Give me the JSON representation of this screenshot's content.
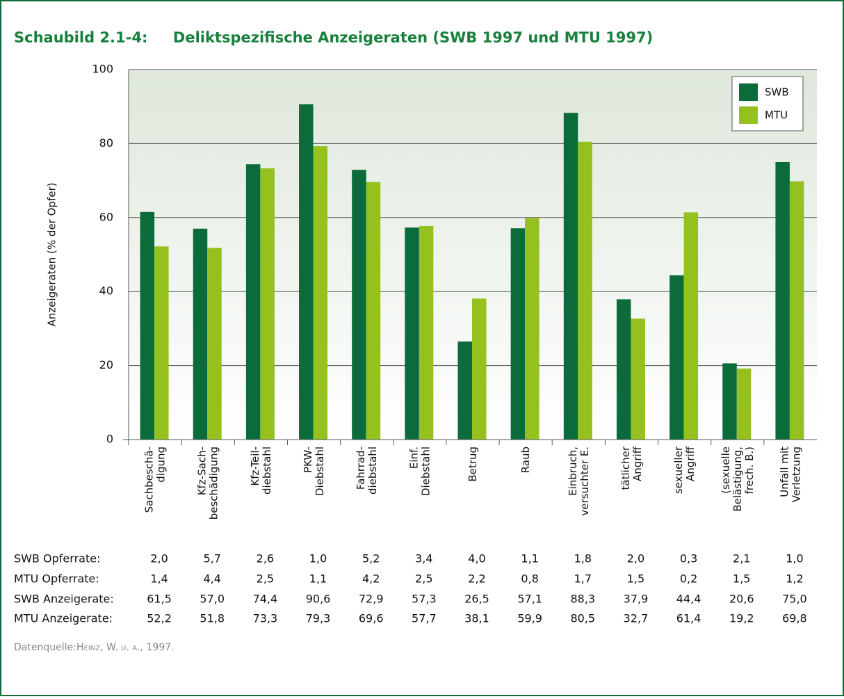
{
  "chart_data": {
    "type": "bar",
    "title": "Schaubild 2.1-4:     Deliktspezifische Anzeigeraten (SWB 1997 und MTU 1997)",
    "y_label": "Anzeigeraten (% der Opfer)",
    "categories": [
      "Sachbeschä-\ndigung",
      "Kfz-Sach-\nbeschädigung",
      "Kfz-Teil-\ndiebstahl",
      "PKW-\nDiebstahl",
      "Fahrrad-\ndiebstahl",
      "Einf.\nDiebstahl",
      "Betrug",
      "Raub",
      "Einbruch,\nversuchter E.",
      "tätlicher\nAngriff",
      "sexueller\nAngriff",
      "(sexuelle\nBelästigung,\nfrech. B.)",
      "Unfall mit\nVerletzung"
    ],
    "series": [
      {
        "name": "SWB",
        "color": "#0b6b3a",
        "table_label": "SWB Anzeigerate:",
        "values": [
          61.5,
          57.0,
          74.4,
          90.6,
          72.9,
          57.3,
          26.5,
          57.1,
          88.3,
          37.9,
          44.4,
          20.6,
          75.0
        ],
        "value_labels": [
          "61,5",
          "57,0",
          "74,4",
          "90,6",
          "72,9",
          "57,3",
          "26,5",
          "57,1",
          "88,3",
          "37,9",
          "44,4",
          "20,6",
          "75,0"
        ]
      },
      {
        "name": "MTU",
        "color": "#95c11f",
        "table_label": "MTU Anzeigerate:",
        "values": [
          52.2,
          51.8,
          73.3,
          79.3,
          69.6,
          57.7,
          38.1,
          59.9,
          80.5,
          32.7,
          61.4,
          19.2,
          69.8
        ],
        "value_labels": [
          "52,2",
          "51,8",
          "73,3",
          "79,3",
          "69,6",
          "57,7",
          "38,1",
          "59,9",
          "80,5",
          "32,7",
          "61,4",
          "19,2",
          "69,8"
        ]
      }
    ],
    "rate_rows": [
      {
        "label": "SWB Opferrate:",
        "values": [
          "2,0",
          "5,7",
          "2,6",
          "1,0",
          "5,2",
          "3,4",
          "4,0",
          "1,1",
          "1,8",
          "2,0",
          "0,3",
          "2,1",
          "1,0"
        ]
      },
      {
        "label": "MTU Opferrate:",
        "values": [
          "1,4",
          "4,4",
          "2,5",
          "1,1",
          "4,2",
          "2,5",
          "2,2",
          "0,8",
          "1,7",
          "1,5",
          "0,2",
          "1,5",
          "1,2"
        ]
      }
    ],
    "ylim": [
      0,
      100
    ],
    "yticks": [
      0,
      20,
      40,
      60,
      80,
      100
    ],
    "grid": true,
    "legend": "top-right",
    "source_label": "Datenquelle:",
    "source": "Heinz, W. u. a., 1997."
  }
}
